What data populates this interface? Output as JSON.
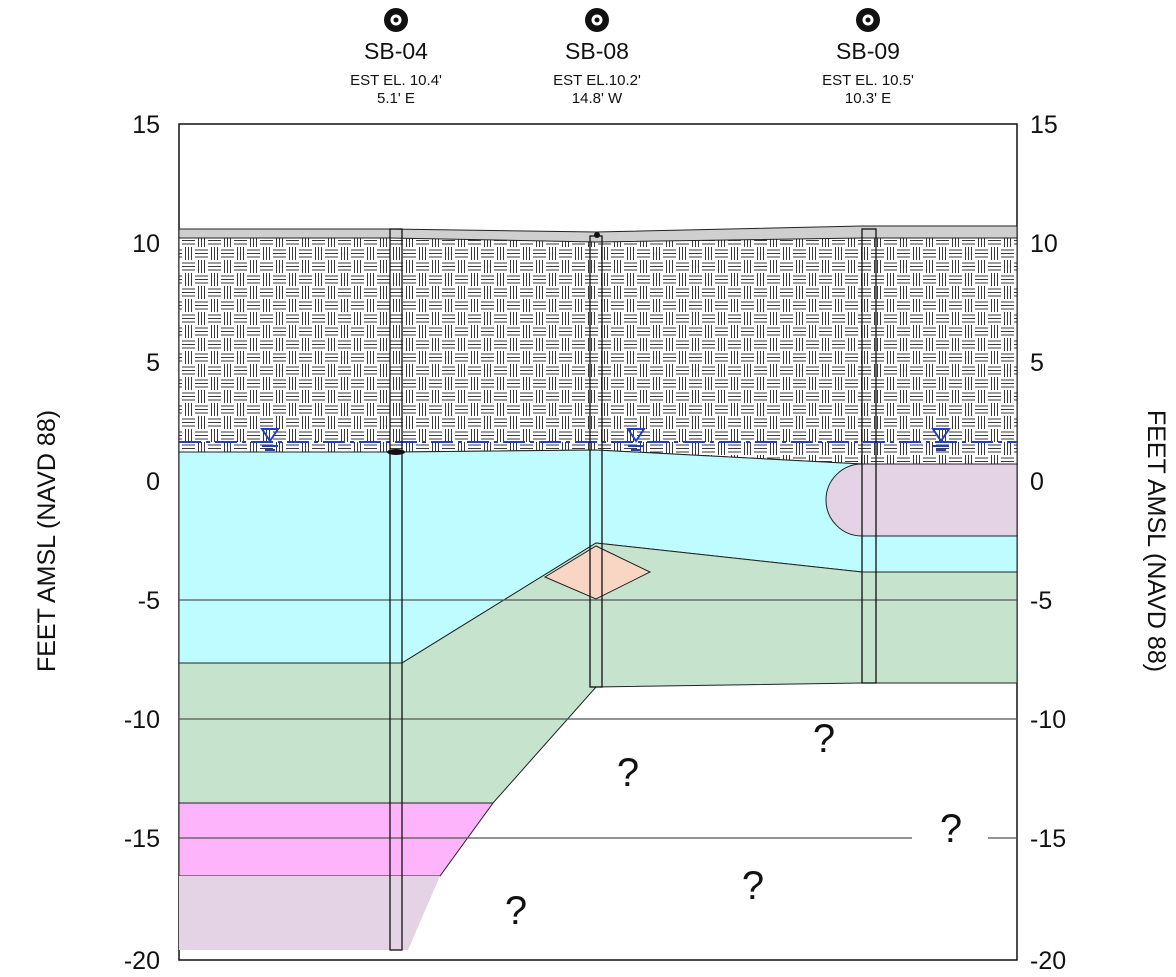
{
  "axis": {
    "left_title": "FEET AMSL (NAVD 88)",
    "right_title": "FEET AMSL (NAVD 88)",
    "ticks": [
      "15",
      "10",
      "5",
      "0",
      "-5",
      "-10",
      "-15",
      "-20"
    ]
  },
  "borings": [
    {
      "name": "SB-04",
      "elevation": "EST EL. 10.4'",
      "offset": "5.1' E"
    },
    {
      "name": "SB-08",
      "elevation": "EST EL.10.2'",
      "offset": "14.8' W"
    },
    {
      "name": "SB-09",
      "elevation": "EST EL. 10.5'",
      "offset": "10.3' E"
    }
  ],
  "unknown_markers": [
    "?",
    "?",
    "?",
    "?",
    "?"
  ],
  "colors": {
    "fill_layer": "#d8d8d8",
    "cyan_layer": "#bffcff",
    "green_layer": "#c5e3cd",
    "pink_layer": "#fdb4fb",
    "mauve_layer": "#e3d3e5",
    "salmon_lens": "#f9d5c4",
    "water_table": "#1f3fbf"
  }
}
